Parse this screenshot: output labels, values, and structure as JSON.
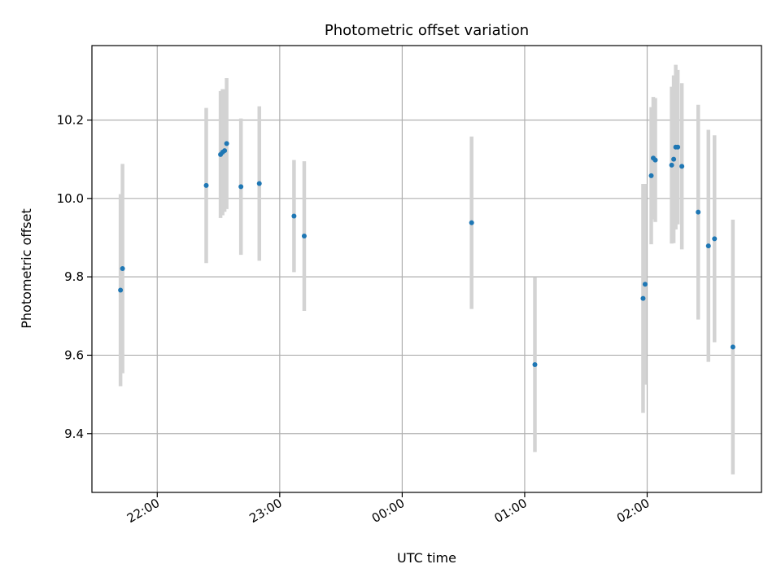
{
  "chart_data": {
    "type": "scatter",
    "title": "Photometric offset variation",
    "xlabel": "UTC time",
    "ylabel": "Photometric offset",
    "grid": true,
    "xlim": [
      "21:28",
      "02:56"
    ],
    "ylim": [
      9.25,
      10.39
    ],
    "x_ticks": [
      "22:00",
      "23:00",
      "00:00",
      "01:00",
      "02:00"
    ],
    "y_ticks": [
      "9.4",
      "9.6",
      "9.8",
      "10.0",
      "10.2"
    ],
    "colors": {
      "marker": "#1f77b4",
      "errorbar": "#d3d3d3",
      "grid": "#b0b0b0"
    },
    "points": [
      {
        "time": "21:42",
        "value": 9.766,
        "err": 0.245
      },
      {
        "time": "21:43",
        "value": 9.821,
        "err": 0.267
      },
      {
        "time": "22:24",
        "value": 10.033,
        "err": 0.198
      },
      {
        "time": "22:31",
        "value": 10.112,
        "err": 0.162
      },
      {
        "time": "22:32",
        "value": 10.118,
        "err": 0.161
      },
      {
        "time": "22:33",
        "value": 10.122,
        "err": 0.156
      },
      {
        "time": "22:34",
        "value": 10.14,
        "err": 0.167
      },
      {
        "time": "22:41",
        "value": 10.03,
        "err": 0.174
      },
      {
        "time": "22:50",
        "value": 10.038,
        "err": 0.197
      },
      {
        "time": "23:07",
        "value": 9.955,
        "err": 0.143
      },
      {
        "time": "23:12",
        "value": 9.904,
        "err": 0.191
      },
      {
        "time": "00:34",
        "value": 9.938,
        "err": 0.22
      },
      {
        "time": "01:05",
        "value": 9.576,
        "err": 0.223
      },
      {
        "time": "01:58",
        "value": 9.745,
        "err": 0.292
      },
      {
        "time": "01:59",
        "value": 9.781,
        "err": 0.256
      },
      {
        "time": "02:02",
        "value": 10.058,
        "err": 0.175
      },
      {
        "time": "02:03",
        "value": 10.103,
        "err": 0.156
      },
      {
        "time": "02:04",
        "value": 10.098,
        "err": 0.158
      },
      {
        "time": "02:12",
        "value": 10.085,
        "err": 0.2
      },
      {
        "time": "02:13",
        "value": 10.1,
        "err": 0.214
      },
      {
        "time": "02:14",
        "value": 10.131,
        "err": 0.21
      },
      {
        "time": "02:15",
        "value": 10.131,
        "err": 0.197
      },
      {
        "time": "02:17",
        "value": 10.082,
        "err": 0.212
      },
      {
        "time": "02:25",
        "value": 9.965,
        "err": 0.274
      },
      {
        "time": "02:30",
        "value": 9.879,
        "err": 0.296
      },
      {
        "time": "02:33",
        "value": 9.897,
        "err": 0.264
      },
      {
        "time": "02:42",
        "value": 9.621,
        "err": 0.325
      }
    ]
  }
}
